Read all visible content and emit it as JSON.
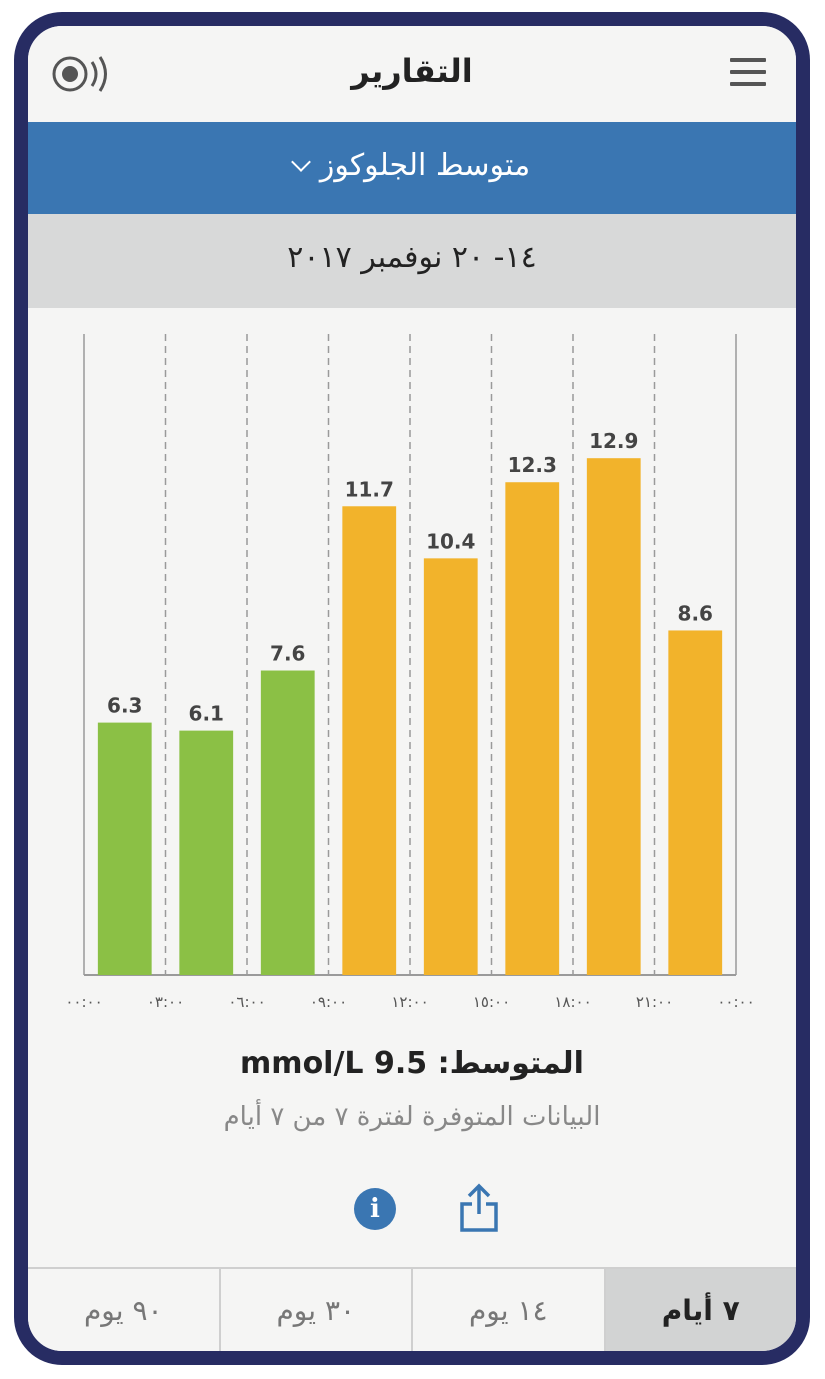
{
  "header": {
    "title": "التقارير"
  },
  "report_selector": {
    "label": "متوسط الجلوكوز"
  },
  "date_range": "١٤- ٢٠ نوفمبر ٢٠١٧",
  "chart_data": {
    "type": "bar",
    "categories": [
      "00:00-03:00",
      "03:00-06:00",
      "06:00-09:00",
      "09:00-12:00",
      "12:00-15:00",
      "15:00-18:00",
      "18:00-21:00",
      "21:00-00:00"
    ],
    "values": [
      6.3,
      6.1,
      7.6,
      11.7,
      10.4,
      12.3,
      12.9,
      8.6
    ],
    "value_labels": [
      "6.3",
      "6.1",
      "7.6",
      "11.7",
      "10.4",
      "12.3",
      "12.9",
      "8.6"
    ],
    "bar_colors": [
      "#8bc045",
      "#8bc045",
      "#8bc045",
      "#f2b32b",
      "#f2b32b",
      "#f2b32b",
      "#f2b32b",
      "#f2b32b"
    ],
    "x_tick_labels": [
      "٠٠:٠٠",
      "٠٣:٠٠",
      "٠٦:٠٠",
      "٠٩:٠٠",
      "١٢:٠٠",
      "١٥:٠٠",
      "١٨:٠٠",
      "٢١:٠٠",
      "٠٠:٠٠"
    ],
    "ylim": [
      0,
      16
    ],
    "grid": "vertical-dashed"
  },
  "summary": {
    "average": "المتوسط: 9.5 mmol/L",
    "availability": "البيانات المتوفرة لفترة ٧ من ٧ أيام"
  },
  "icons": {
    "info": "info-icon",
    "share": "share-icon",
    "menu": "menu-icon",
    "sensor": "sensor-icon"
  },
  "colors": {
    "accent": "#3a76b2",
    "frame": "#272c63",
    "in_range": "#8bc045",
    "high": "#f2b32b"
  },
  "tabs": [
    {
      "label": "٩٠ يوم",
      "active": false
    },
    {
      "label": "٣٠ يوم",
      "active": false
    },
    {
      "label": "١٤ يوم",
      "active": false
    },
    {
      "label": "٧ أيام",
      "active": true
    }
  ]
}
